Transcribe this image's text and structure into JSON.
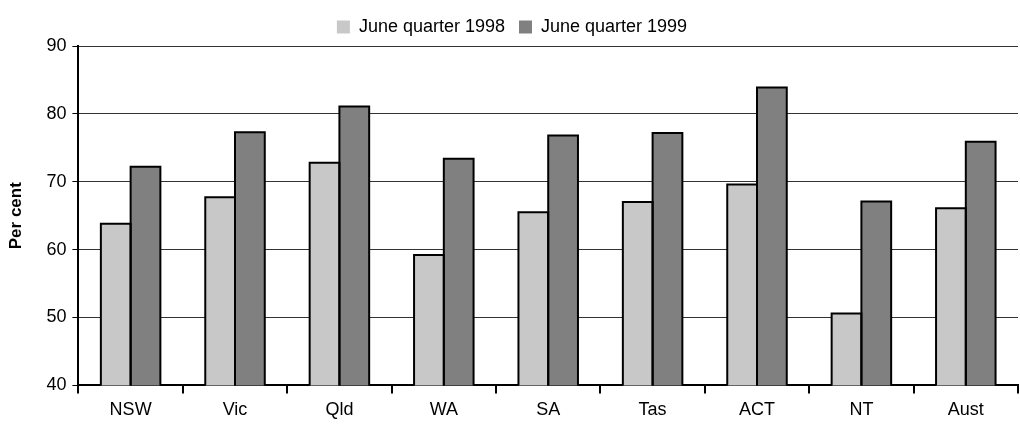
{
  "chart_data": {
    "type": "bar",
    "categories": [
      "NSW",
      "Vic",
      "Qld",
      "WA",
      "SA",
      "Tas",
      "ACT",
      "NT",
      "Aust"
    ],
    "series": [
      {
        "name": "June quarter 1998",
        "color": "#c8c8c8",
        "values": [
          63.8,
          67.7,
          72.8,
          59.2,
          65.5,
          67.0,
          69.6,
          50.6,
          66.1
        ]
      },
      {
        "name": "June quarter 1999",
        "color": "#808080",
        "values": [
          72.2,
          77.3,
          81.1,
          73.4,
          76.8,
          77.2,
          83.9,
          67.1,
          75.9
        ]
      }
    ],
    "ylabel": "Per cent",
    "ylim": [
      40,
      90
    ],
    "yticks": [
      40,
      50,
      60,
      70,
      80,
      90
    ],
    "grid": "y",
    "legend": "top"
  }
}
